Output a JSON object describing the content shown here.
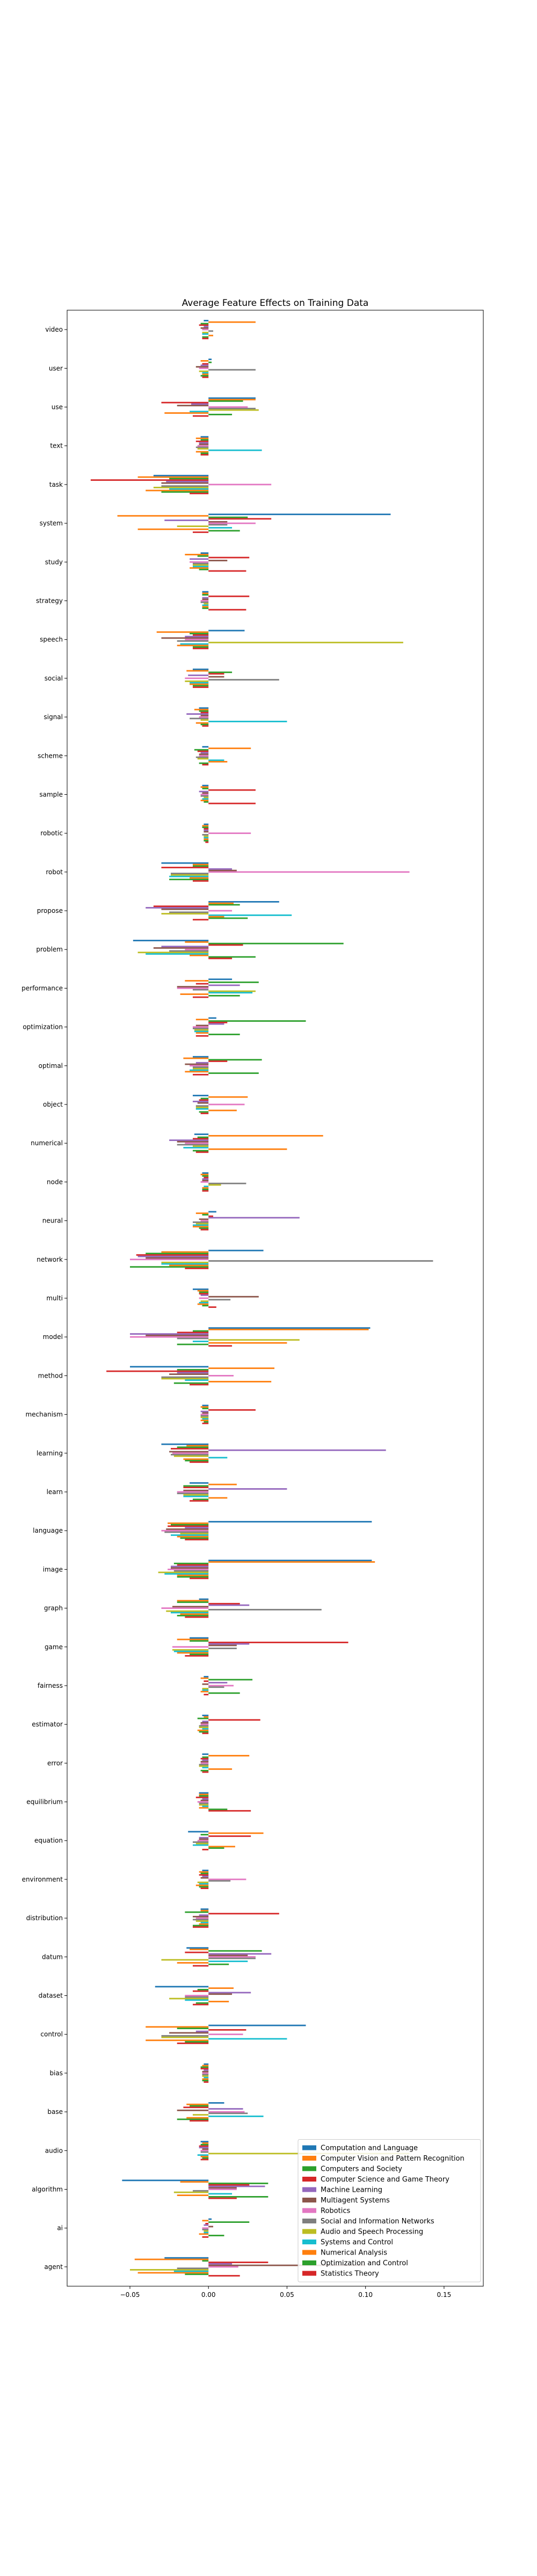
{
  "chart_data": {
    "type": "bar",
    "orientation": "horizontal",
    "title": "Average Feature Effects on Training Data",
    "xlabel": "",
    "ylabel": "",
    "xlim": [
      -0.09,
      0.175
    ],
    "xticks": [
      -0.05,
      0.0,
      0.05,
      0.1,
      0.15
    ],
    "xtick_labels": [
      "−0.05",
      "0.00",
      "0.05",
      "0.10",
      "0.15"
    ],
    "grid": false,
    "legend_position": "lower right",
    "categories": [
      "agent",
      "ai",
      "algorithm",
      "audio",
      "base",
      "bias",
      "control",
      "dataset",
      "datum",
      "distribution",
      "environment",
      "equation",
      "equilibrium",
      "error",
      "estimator",
      "fairness",
      "game",
      "graph",
      "image",
      "language",
      "learn",
      "learning",
      "mechanism",
      "method",
      "model",
      "multi",
      "network",
      "neural",
      "node",
      "numerical",
      "object",
      "optimal",
      "optimization",
      "performance",
      "problem",
      "propose",
      "robot",
      "robotic",
      "sample",
      "scheme",
      "signal",
      "social",
      "speech",
      "strategy",
      "study",
      "system",
      "task",
      "text",
      "use",
      "user",
      "video"
    ],
    "series": [
      {
        "name": "Computation and Language",
        "color": "#1f77b4",
        "values": [
          -0.028,
          0.002,
          -0.055,
          -0.005,
          0.01,
          -0.003,
          0.062,
          -0.034,
          -0.014,
          -0.005,
          -0.004,
          -0.013,
          -0.006,
          -0.004,
          -0.004,
          -0.003,
          -0.012,
          -0.006,
          0.104,
          0.104,
          -0.012,
          -0.03,
          -0.004,
          -0.05,
          0.103,
          -0.01,
          0.035,
          0.005,
          -0.004,
          -0.009,
          -0.01,
          -0.01,
          0.005,
          0.015,
          -0.048,
          0.045,
          -0.03,
          -0.003,
          -0.004,
          -0.004,
          -0.006,
          -0.01,
          0.023,
          -0.004,
          -0.005,
          0.116,
          -0.035,
          -0.005,
          0.03,
          0.002,
          -0.003
        ]
      },
      {
        "name": "Computer Vision and Pattern Recognition",
        "color": "#ff7f0e",
        "values": [
          -0.047,
          -0.004,
          -0.018,
          -0.004,
          -0.014,
          -0.004,
          -0.04,
          0.016,
          -0.012,
          -0.005,
          -0.006,
          0.035,
          -0.006,
          0.026,
          -0.003,
          -0.005,
          -0.02,
          -0.02,
          0.106,
          -0.026,
          0.018,
          -0.014,
          -0.005,
          0.042,
          0.102,
          -0.007,
          -0.03,
          -0.008,
          -0.005,
          0.073,
          0.025,
          -0.016,
          -0.008,
          -0.015,
          -0.015,
          0.016,
          -0.01,
          -0.004,
          -0.005,
          0.027,
          -0.009,
          -0.014,
          -0.033,
          -0.004,
          -0.015,
          -0.058,
          -0.045,
          -0.008,
          0.03,
          -0.005,
          0.03
        ]
      },
      {
        "name": "Computers and Society",
        "color": "#2ca02c",
        "values": [
          -0.004,
          0.026,
          0.038,
          -0.005,
          -0.012,
          -0.005,
          -0.02,
          -0.007,
          0.034,
          -0.015,
          -0.005,
          -0.005,
          -0.006,
          -0.004,
          -0.007,
          0.028,
          -0.012,
          -0.02,
          -0.022,
          -0.024,
          -0.016,
          -0.02,
          -0.004,
          -0.02,
          -0.01,
          -0.006,
          -0.04,
          -0.004,
          -0.004,
          -0.007,
          -0.005,
          0.034,
          0.062,
          0.032,
          0.086,
          0.02,
          -0.01,
          -0.004,
          -0.004,
          -0.009,
          -0.006,
          0.015,
          -0.012,
          -0.004,
          -0.007,
          0.025,
          -0.025,
          -0.005,
          0.022,
          0.002,
          -0.005
        ]
      },
      {
        "name": "Computer Science and Game Theory",
        "color": "#d62728",
        "values": [
          0.038,
          -0.002,
          0.026,
          -0.006,
          -0.016,
          -0.005,
          0.024,
          -0.01,
          -0.015,
          0.045,
          -0.006,
          0.027,
          -0.008,
          -0.005,
          0.033,
          -0.003,
          0.089,
          0.02,
          -0.02,
          -0.026,
          -0.016,
          -0.024,
          0.03,
          -0.065,
          -0.02,
          -0.006,
          -0.046,
          0.003,
          -0.003,
          -0.01,
          -0.006,
          0.012,
          0.012,
          -0.008,
          0.022,
          -0.035,
          -0.03,
          -0.003,
          0.03,
          -0.007,
          -0.005,
          0.01,
          -0.01,
          0.026,
          0.026,
          0.04,
          -0.075,
          -0.008,
          -0.03,
          -0.004,
          -0.006
        ]
      },
      {
        "name": "Machine Learning",
        "color": "#9467bd",
        "values": [
          0.015,
          -0.003,
          0.036,
          -0.006,
          0.022,
          -0.003,
          -0.008,
          0.027,
          0.04,
          -0.006,
          -0.004,
          -0.006,
          -0.004,
          -0.004,
          -0.004,
          0.012,
          0.026,
          0.026,
          -0.024,
          -0.015,
          0.05,
          0.113,
          -0.005,
          -0.02,
          -0.05,
          -0.005,
          -0.045,
          0.058,
          -0.004,
          -0.025,
          -0.01,
          -0.008,
          0.01,
          0.02,
          -0.03,
          -0.04,
          0.015,
          -0.003,
          -0.006,
          -0.005,
          -0.014,
          -0.013,
          -0.015,
          -0.004,
          -0.012,
          -0.028,
          -0.027,
          -0.006,
          -0.011,
          -0.005,
          -0.003
        ]
      },
      {
        "name": "Multiagent Systems",
        "color": "#8c564b",
        "values": [
          0.1,
          0.003,
          0.018,
          -0.004,
          -0.02,
          -0.004,
          -0.025,
          0.015,
          0.025,
          -0.01,
          -0.005,
          -0.006,
          -0.005,
          -0.005,
          -0.005,
          -0.004,
          0.018,
          -0.023,
          -0.024,
          -0.027,
          -0.016,
          -0.025,
          -0.004,
          -0.025,
          -0.04,
          0.032,
          -0.04,
          -0.006,
          -0.004,
          -0.02,
          -0.007,
          -0.015,
          -0.008,
          -0.02,
          -0.035,
          -0.03,
          0.018,
          -0.003,
          -0.004,
          -0.006,
          -0.005,
          0.01,
          -0.03,
          -0.004,
          0.012,
          0.012,
          -0.03,
          -0.006,
          -0.02,
          -0.008,
          -0.005
        ]
      },
      {
        "name": "Robotics",
        "color": "#e377c2",
        "values": [
          0.019,
          -0.004,
          0.018,
          -0.005,
          0.023,
          -0.004,
          0.022,
          -0.015,
          0.03,
          -0.008,
          0.024,
          -0.007,
          -0.007,
          -0.005,
          -0.005,
          0.016,
          -0.023,
          -0.03,
          -0.026,
          -0.03,
          -0.02,
          -0.023,
          -0.005,
          0.016,
          -0.05,
          -0.006,
          -0.05,
          -0.005,
          -0.005,
          -0.015,
          0.023,
          -0.012,
          -0.01,
          -0.02,
          -0.015,
          0.015,
          0.128,
          0.027,
          -0.005,
          -0.006,
          -0.006,
          -0.015,
          -0.015,
          -0.005,
          -0.012,
          0.03,
          0.04,
          -0.007,
          0.025,
          -0.006,
          -0.004
        ]
      },
      {
        "name": "Social and Information Networks",
        "color": "#7f7f7f",
        "values": [
          -0.02,
          -0.004,
          -0.01,
          -0.005,
          0.025,
          -0.004,
          -0.03,
          -0.015,
          0.03,
          -0.01,
          0.014,
          -0.01,
          -0.006,
          -0.006,
          -0.006,
          0.01,
          0.018,
          0.072,
          -0.022,
          -0.028,
          -0.02,
          -0.024,
          -0.005,
          -0.03,
          -0.02,
          0.014,
          0.143,
          -0.01,
          0.024,
          -0.02,
          -0.008,
          -0.01,
          -0.01,
          -0.01,
          -0.025,
          -0.025,
          -0.024,
          -0.004,
          -0.005,
          -0.008,
          -0.012,
          0.045,
          -0.02,
          -0.005,
          -0.01,
          0.012,
          -0.03,
          -0.008,
          0.03,
          0.03,
          0.003
        ]
      },
      {
        "name": "Audio and Speech Processing",
        "color": "#bcbd22",
        "values": [
          -0.05,
          -0.003,
          -0.022,
          0.128,
          -0.01,
          -0.004,
          -0.03,
          -0.025,
          -0.03,
          -0.008,
          -0.007,
          -0.008,
          -0.006,
          -0.006,
          -0.006,
          -0.004,
          -0.023,
          -0.027,
          -0.032,
          -0.018,
          -0.016,
          -0.022,
          -0.005,
          -0.03,
          0.058,
          -0.005,
          -0.03,
          -0.008,
          0.008,
          -0.01,
          -0.008,
          -0.01,
          -0.009,
          0.03,
          -0.045,
          -0.03,
          -0.024,
          -0.003,
          -0.003,
          -0.007,
          -0.005,
          -0.015,
          0.124,
          -0.003,
          -0.01,
          -0.02,
          -0.035,
          -0.007,
          0.032,
          -0.006,
          -0.004
        ]
      },
      {
        "name": "Systems and Control",
        "color": "#17becf",
        "values": [
          -0.022,
          -0.003,
          0.015,
          -0.007,
          0.035,
          -0.003,
          0.05,
          -0.015,
          0.025,
          -0.005,
          -0.006,
          -0.01,
          -0.004,
          -0.004,
          -0.004,
          -0.004,
          -0.022,
          -0.024,
          -0.028,
          -0.024,
          -0.016,
          0.012,
          -0.004,
          -0.015,
          -0.01,
          -0.006,
          -0.03,
          -0.01,
          -0.003,
          -0.016,
          -0.008,
          -0.012,
          -0.009,
          0.028,
          -0.04,
          0.053,
          -0.025,
          -0.003,
          -0.004,
          0.01,
          0.05,
          -0.012,
          -0.018,
          -0.004,
          -0.01,
          0.015,
          -0.025,
          0.034,
          -0.012,
          -0.004,
          -0.004
        ]
      },
      {
        "name": "Numerical Analysis",
        "color": "#ff7f0e",
        "values": [
          -0.045,
          -0.006,
          -0.02,
          -0.005,
          -0.014,
          -0.004,
          -0.04,
          0.013,
          -0.02,
          -0.006,
          -0.008,
          0.017,
          -0.006,
          0.015,
          -0.007,
          -0.005,
          -0.02,
          -0.018,
          -0.02,
          -0.02,
          0.012,
          -0.016,
          -0.005,
          0.04,
          0.05,
          -0.007,
          -0.025,
          -0.01,
          -0.004,
          0.05,
          0.018,
          -0.015,
          -0.008,
          -0.018,
          -0.012,
          0.01,
          -0.012,
          -0.003,
          -0.005,
          0.012,
          -0.008,
          -0.012,
          -0.02,
          -0.004,
          -0.012,
          -0.045,
          -0.04,
          -0.008,
          -0.028,
          -0.004,
          0.003
        ]
      },
      {
        "name": "Optimization and Control",
        "color": "#2ca02c",
        "values": [
          -0.015,
          0.01,
          0.038,
          -0.004,
          -0.02,
          -0.004,
          -0.015,
          -0.008,
          0.013,
          -0.01,
          -0.006,
          0.01,
          0.012,
          -0.005,
          -0.006,
          0.02,
          -0.012,
          -0.02,
          -0.02,
          -0.018,
          -0.01,
          -0.015,
          -0.003,
          -0.022,
          -0.02,
          -0.004,
          -0.05,
          -0.006,
          -0.004,
          -0.01,
          -0.006,
          0.032,
          0.02,
          0.02,
          0.03,
          0.025,
          -0.025,
          -0.003,
          -0.003,
          -0.006,
          -0.005,
          -0.01,
          -0.01,
          -0.004,
          -0.006,
          0.02,
          -0.03,
          -0.005,
          0.015,
          -0.005,
          -0.004
        ]
      },
      {
        "name": "Statistics Theory",
        "color": "#d62728",
        "values": [
          0.02,
          -0.004,
          0.018,
          -0.005,
          -0.012,
          -0.003,
          -0.02,
          -0.01,
          -0.01,
          -0.01,
          -0.005,
          -0.004,
          0.027,
          -0.004,
          -0.004,
          -0.003,
          -0.015,
          -0.015,
          -0.012,
          -0.015,
          -0.012,
          -0.012,
          -0.004,
          -0.012,
          0.015,
          0.005,
          -0.015,
          -0.005,
          -0.004,
          -0.008,
          -0.005,
          -0.01,
          -0.008,
          -0.01,
          0.015,
          -0.01,
          -0.01,
          -0.002,
          0.03,
          -0.004,
          -0.004,
          -0.01,
          -0.01,
          0.024,
          0.024,
          -0.01,
          -0.012,
          -0.005,
          -0.01,
          -0.004,
          -0.004
        ]
      }
    ]
  }
}
